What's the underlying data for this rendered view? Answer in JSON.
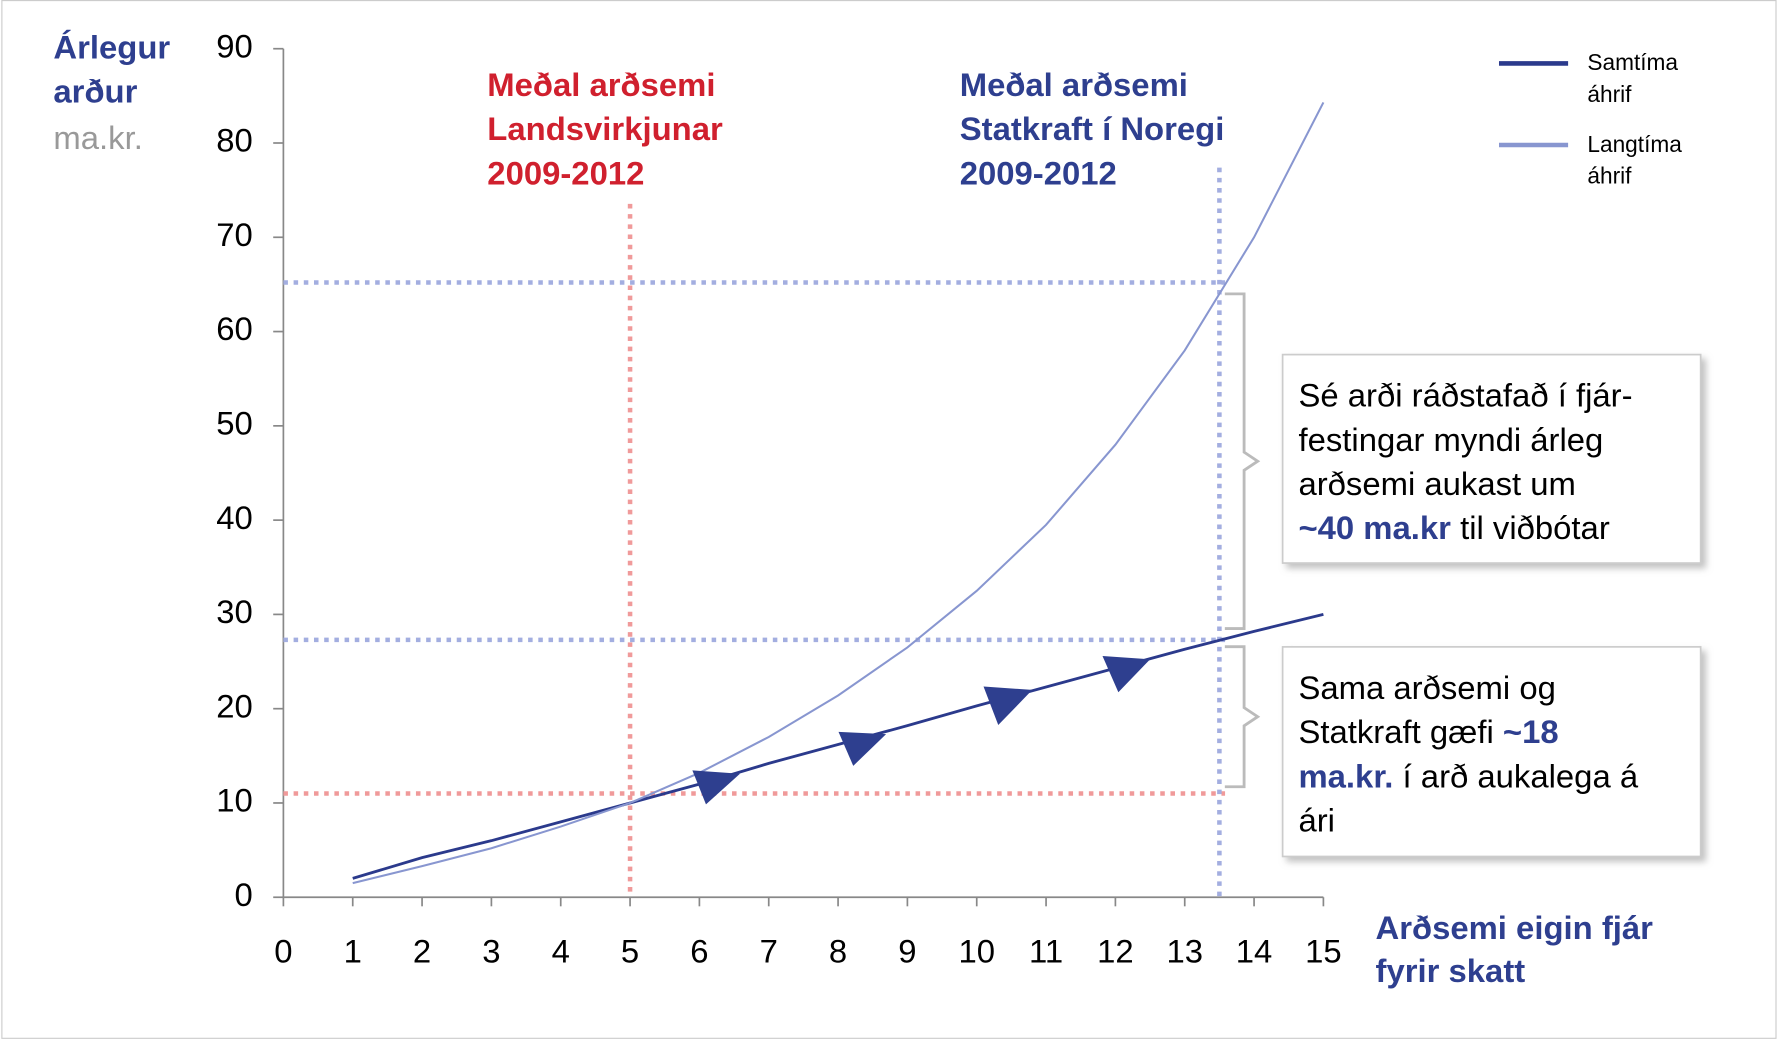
{
  "chart_data": {
    "type": "line",
    "y_label": [
      "Árlegur",
      "arður"
    ],
    "y_unit": "ma.kr.",
    "x_label": [
      "Arðsemi eigin fjár",
      "fyrir skatt"
    ],
    "x": [
      1,
      2,
      3,
      4,
      5,
      6,
      7,
      8,
      9,
      10,
      11,
      12,
      13,
      14,
      15
    ],
    "series": [
      {
        "name": "Samtíma áhrif",
        "color": "#2b3a8c",
        "values": [
          2,
          4.2,
          6,
          8,
          10,
          12,
          14.2,
          16.2,
          18.2,
          20.3,
          22.3,
          24.3,
          26.3,
          28.2,
          30
        ]
      },
      {
        "name": "Langtíma áhrif",
        "color": "#8896d0",
        "values": [
          1.5,
          3.3,
          5.2,
          7.5,
          10,
          13.2,
          17,
          21.4,
          26.5,
          32.5,
          39.5,
          48,
          58,
          70,
          84.3
        ]
      }
    ],
    "xlim": [
      0,
      15
    ],
    "xticks": [
      0,
      1,
      2,
      3,
      4,
      5,
      6,
      7,
      8,
      9,
      10,
      11,
      12,
      13,
      14,
      15
    ],
    "ylim": [
      0,
      90
    ],
    "yticks": [
      0,
      10,
      20,
      30,
      40,
      50,
      60,
      70,
      80,
      90
    ],
    "reference_lines": [
      {
        "x": 5,
        "y": 11,
        "color": "#f09a9a",
        "label": [
          "Meðal arðsemi",
          "Landsvirkjunar",
          "2009-2012"
        ],
        "label_color": "#d0202e"
      },
      {
        "x": 13.5,
        "y": 27.3,
        "color": "#a3aee0",
        "label": [
          "Meðal arðsemi",
          "Statkraft í Noregi",
          "2009-2012"
        ],
        "label_color": "#2e3f8f"
      }
    ],
    "upper_level": 65.2,
    "annotations": [
      {
        "lines": [
          [
            {
              "text": "Sé arði ráðstafað í fjár-"
            }
          ],
          [
            {
              "text": "festingar myndi árleg"
            }
          ],
          [
            {
              "text": "arðsemi aukast um"
            }
          ],
          [
            {
              "text": "~40 ma.kr",
              "bold": true
            },
            {
              "text": " til viðbótar"
            }
          ]
        ]
      },
      {
        "lines": [
          [
            {
              "text": "Sama arðsemi og"
            }
          ],
          [
            {
              "text": "Statkraft gæfi "
            },
            {
              "text": "~18",
              "bold": true
            }
          ],
          [
            {
              "text": "ma.kr.",
              "bold": true
            },
            {
              "text": " í arð aukalega á"
            }
          ],
          [
            {
              "text": "ári"
            }
          ]
        ]
      }
    ],
    "legend": "top-right"
  }
}
